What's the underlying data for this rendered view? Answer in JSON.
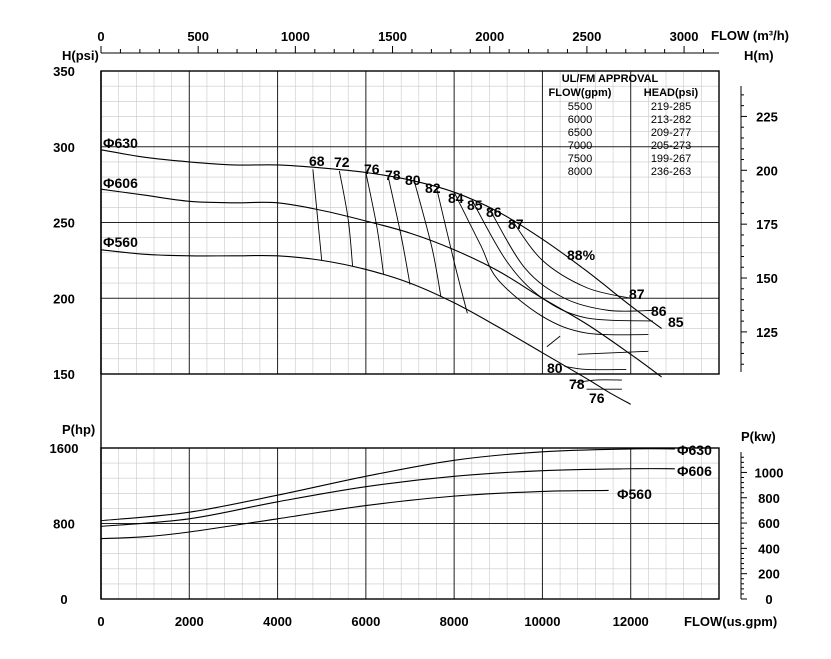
{
  "chart_data": {
    "type": "line",
    "title": "",
    "xlabel_bottom": "FLOW(us.gpm)",
    "xlabel_top": "FLOW (m³/h)",
    "xticks_bottom": [
      "0",
      "2000",
      "4000",
      "6000",
      "8000",
      "10000",
      "12000"
    ],
    "xticks_top": [
      "0",
      "500",
      "1000",
      "1500",
      "2000",
      "2500",
      "3000"
    ],
    "xlim_gpm": [
      0,
      14000
    ],
    "head_panel": {
      "ylabel_left": "H(psi)",
      "ylabel_right": "H(m)",
      "yticks_left": [
        "150",
        "200",
        "250",
        "300",
        "350"
      ],
      "yticks_right": [
        "125",
        "150",
        "175",
        "200",
        "225"
      ],
      "ylim_psi": [
        150,
        350
      ],
      "impeller_curves": [
        {
          "name": "Φ630",
          "x": [
            0,
            1000,
            2000,
            3000,
            4000,
            5000,
            6000,
            7000,
            8000,
            9000,
            10000,
            11000,
            12000,
            12700
          ],
          "y": [
            298,
            293,
            290,
            288,
            288,
            286,
            283,
            278,
            270,
            257,
            239,
            218,
            195,
            180
          ]
        },
        {
          "name": "Φ606",
          "x": [
            0,
            1000,
            2000,
            3000,
            4000,
            5000,
            6000,
            7000,
            8000,
            9000,
            10000,
            11000,
            12000,
            12700
          ],
          "y": [
            272,
            268,
            264,
            263,
            263,
            258,
            251,
            243,
            232,
            218,
            200,
            183,
            163,
            148
          ]
        },
        {
          "name": "Φ560",
          "x": [
            0,
            1000,
            2000,
            3000,
            4000,
            5000,
            6000,
            7000,
            8000,
            9000,
            10000,
            11000,
            11500,
            12000
          ],
          "y": [
            232,
            229,
            228,
            228,
            228,
            225,
            219,
            210,
            197,
            181,
            164,
            147,
            138,
            130
          ]
        }
      ],
      "efficiency_labels": [
        "68",
        "72",
        "76",
        "78",
        "80",
        "82",
        "84",
        "85",
        "86",
        "87",
        "88%",
        "87",
        "86",
        "85",
        "80",
        "78",
        "76"
      ],
      "efficiency_contours": [
        {
          "label": "68",
          "x": [
            4800,
            4900,
            5000
          ],
          "y": [
            285,
            255,
            225
          ]
        },
        {
          "label": "72",
          "x": [
            5400,
            5600,
            5700
          ],
          "y": [
            284,
            252,
            221
          ]
        },
        {
          "label": "76",
          "x": [
            6000,
            6250,
            6400
          ],
          "y": [
            283,
            247,
            216
          ]
        },
        {
          "label": "78",
          "x": [
            6500,
            6800,
            7000
          ],
          "y": [
            281,
            241,
            209
          ]
        },
        {
          "label": "80",
          "x": [
            7100,
            7500,
            7700
          ],
          "y": [
            277,
            233,
            201
          ],
          "tail_x": [
            10500,
            11000,
            11900
          ],
          "tail_y": [
            155,
            153,
            153
          ]
        },
        {
          "label": "82",
          "x": [
            7600,
            8000,
            8300
          ],
          "y": [
            273,
            224,
            190
          ],
          "tail_x": [
            10800,
            12400
          ],
          "tail_y": [
            163,
            165
          ]
        },
        {
          "label": "84",
          "x": [
            8000,
            8600,
            9000,
            10000,
            11000,
            12400
          ],
          "y": [
            270,
            235,
            212,
            188,
            177,
            176
          ]
        },
        {
          "label": "85",
          "x": [
            8400,
            9200,
            10000,
            11000,
            12500
          ],
          "y": [
            265,
            224,
            200,
            187,
            185
          ]
        },
        {
          "label": "86",
          "x": [
            8800,
            9600,
            10500,
            11500,
            12500
          ],
          "y": [
            259,
            220,
            200,
            192,
            192
          ]
        },
        {
          "label": "87",
          "x": [
            9300,
            10000,
            11000,
            12000
          ],
          "y": [
            252,
            225,
            207,
            200
          ]
        },
        {
          "label": "88%",
          "x": [
            10100,
            10400
          ],
          "y": [
            168,
            175
          ]
        },
        {
          "label": "78",
          "x": [
            10700,
            11200,
            11800
          ],
          "y": [
            144,
            146,
            146
          ]
        },
        {
          "label": "76",
          "x": [
            11000,
            11500,
            11800
          ],
          "y": [
            140,
            140,
            140
          ]
        }
      ],
      "approval_table": {
        "title": "UL/FM APPROVAL",
        "columns": [
          "FLOW(gpm)",
          "HEAD(psi)"
        ],
        "rows": [
          [
            "5500",
            "219-285"
          ],
          [
            "6000",
            "213-282"
          ],
          [
            "6500",
            "209-277"
          ],
          [
            "7000",
            "205-273"
          ],
          [
            "7500",
            "199-267"
          ],
          [
            "8000",
            "236-263"
          ]
        ]
      }
    },
    "power_panel": {
      "ylabel_left": "P(hp)",
      "ylabel_right": "P(kw)",
      "yticks_left": [
        "0",
        "800",
        "1600"
      ],
      "yticks_right": [
        "0",
        "200",
        "400",
        "600",
        "800",
        "1000"
      ],
      "ylim_hp": [
        0,
        1600
      ],
      "series": [
        {
          "name": "Φ630",
          "x": [
            0,
            2000,
            4000,
            6000,
            8000,
            10000,
            12000,
            13000
          ],
          "y": [
            830,
            920,
            1100,
            1300,
            1470,
            1560,
            1590,
            1590
          ]
        },
        {
          "name": "Φ606",
          "x": [
            0,
            2000,
            4000,
            6000,
            8000,
            10000,
            12000,
            13000
          ],
          "y": [
            770,
            850,
            1030,
            1190,
            1300,
            1360,
            1380,
            1380
          ]
        },
        {
          "name": "Φ560",
          "x": [
            0,
            1000,
            2000,
            4000,
            6000,
            8000,
            10000,
            11500
          ],
          "y": [
            640,
            660,
            710,
            850,
            990,
            1090,
            1140,
            1150
          ]
        }
      ]
    },
    "grid": true
  }
}
